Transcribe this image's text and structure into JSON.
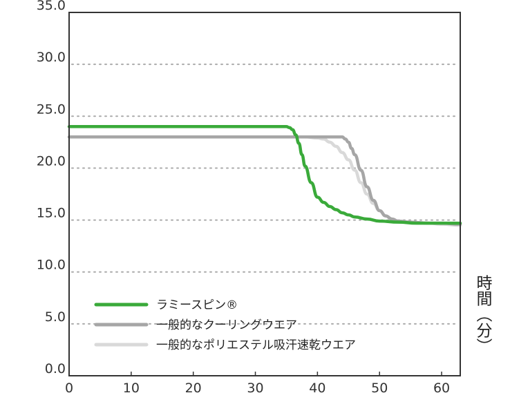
{
  "chart_data": {
    "type": "line",
    "title": "",
    "xlabel": "時間（分）",
    "ylabel": "",
    "xlim": [
      0,
      63
    ],
    "ylim": [
      0,
      35
    ],
    "x_ticks": [
      "0",
      "10",
      "20",
      "30",
      "40",
      "50",
      "60"
    ],
    "y_ticks": [
      "0.0",
      "5.0",
      "10.0",
      "15.0",
      "20.0",
      "25.0",
      "30.0",
      "35.0"
    ],
    "grid": "horizontal dotted",
    "legend_position": "bottom-left",
    "series": [
      {
        "name": "一般的なポリエステル吸汗速乾ウエア",
        "color": "#d9d9d9",
        "x": [
          0,
          10,
          20,
          30,
          38,
          40,
          41,
          42,
          43,
          44,
          45,
          46,
          47,
          48,
          49,
          50,
          51,
          52,
          53,
          55,
          58,
          60,
          63
        ],
        "y": [
          23.0,
          23.0,
          23.0,
          23.0,
          23.0,
          22.9,
          22.8,
          22.5,
          22.1,
          21.5,
          20.8,
          19.8,
          18.6,
          17.5,
          16.6,
          15.9,
          15.4,
          15.1,
          14.9,
          14.8,
          14.7,
          14.6,
          14.5
        ]
      },
      {
        "name": "一般的なクーリングウエア",
        "color": "#a6a6a6",
        "x": [
          0,
          10,
          20,
          30,
          40,
          43,
          44,
          44.5,
          45,
          45.5,
          46,
          47,
          48,
          49,
          50,
          51,
          52,
          53,
          55,
          58,
          60,
          63
        ],
        "y": [
          23.0,
          23.0,
          23.0,
          23.0,
          23.0,
          23.0,
          23.0,
          22.8,
          22.5,
          21.9,
          21.3,
          19.8,
          18.2,
          16.9,
          15.9,
          15.4,
          15.1,
          14.9,
          14.8,
          14.7,
          14.7,
          14.6
        ]
      },
      {
        "name": "ラミースピン®",
        "color": "#3aaa3a",
        "x": [
          0,
          10,
          20,
          30,
          35,
          35.5,
          36,
          36.5,
          37,
          37.5,
          38,
          39,
          40,
          41,
          42,
          43,
          44,
          45,
          46,
          48,
          50,
          53,
          56,
          60,
          63
        ],
        "y": [
          24.0,
          24.0,
          24.0,
          24.0,
          24.0,
          23.9,
          23.7,
          23.2,
          22.4,
          21.3,
          20.2,
          18.6,
          17.2,
          16.7,
          16.3,
          16.0,
          15.7,
          15.5,
          15.3,
          15.1,
          14.9,
          14.8,
          14.7,
          14.7,
          14.7
        ]
      }
    ]
  }
}
